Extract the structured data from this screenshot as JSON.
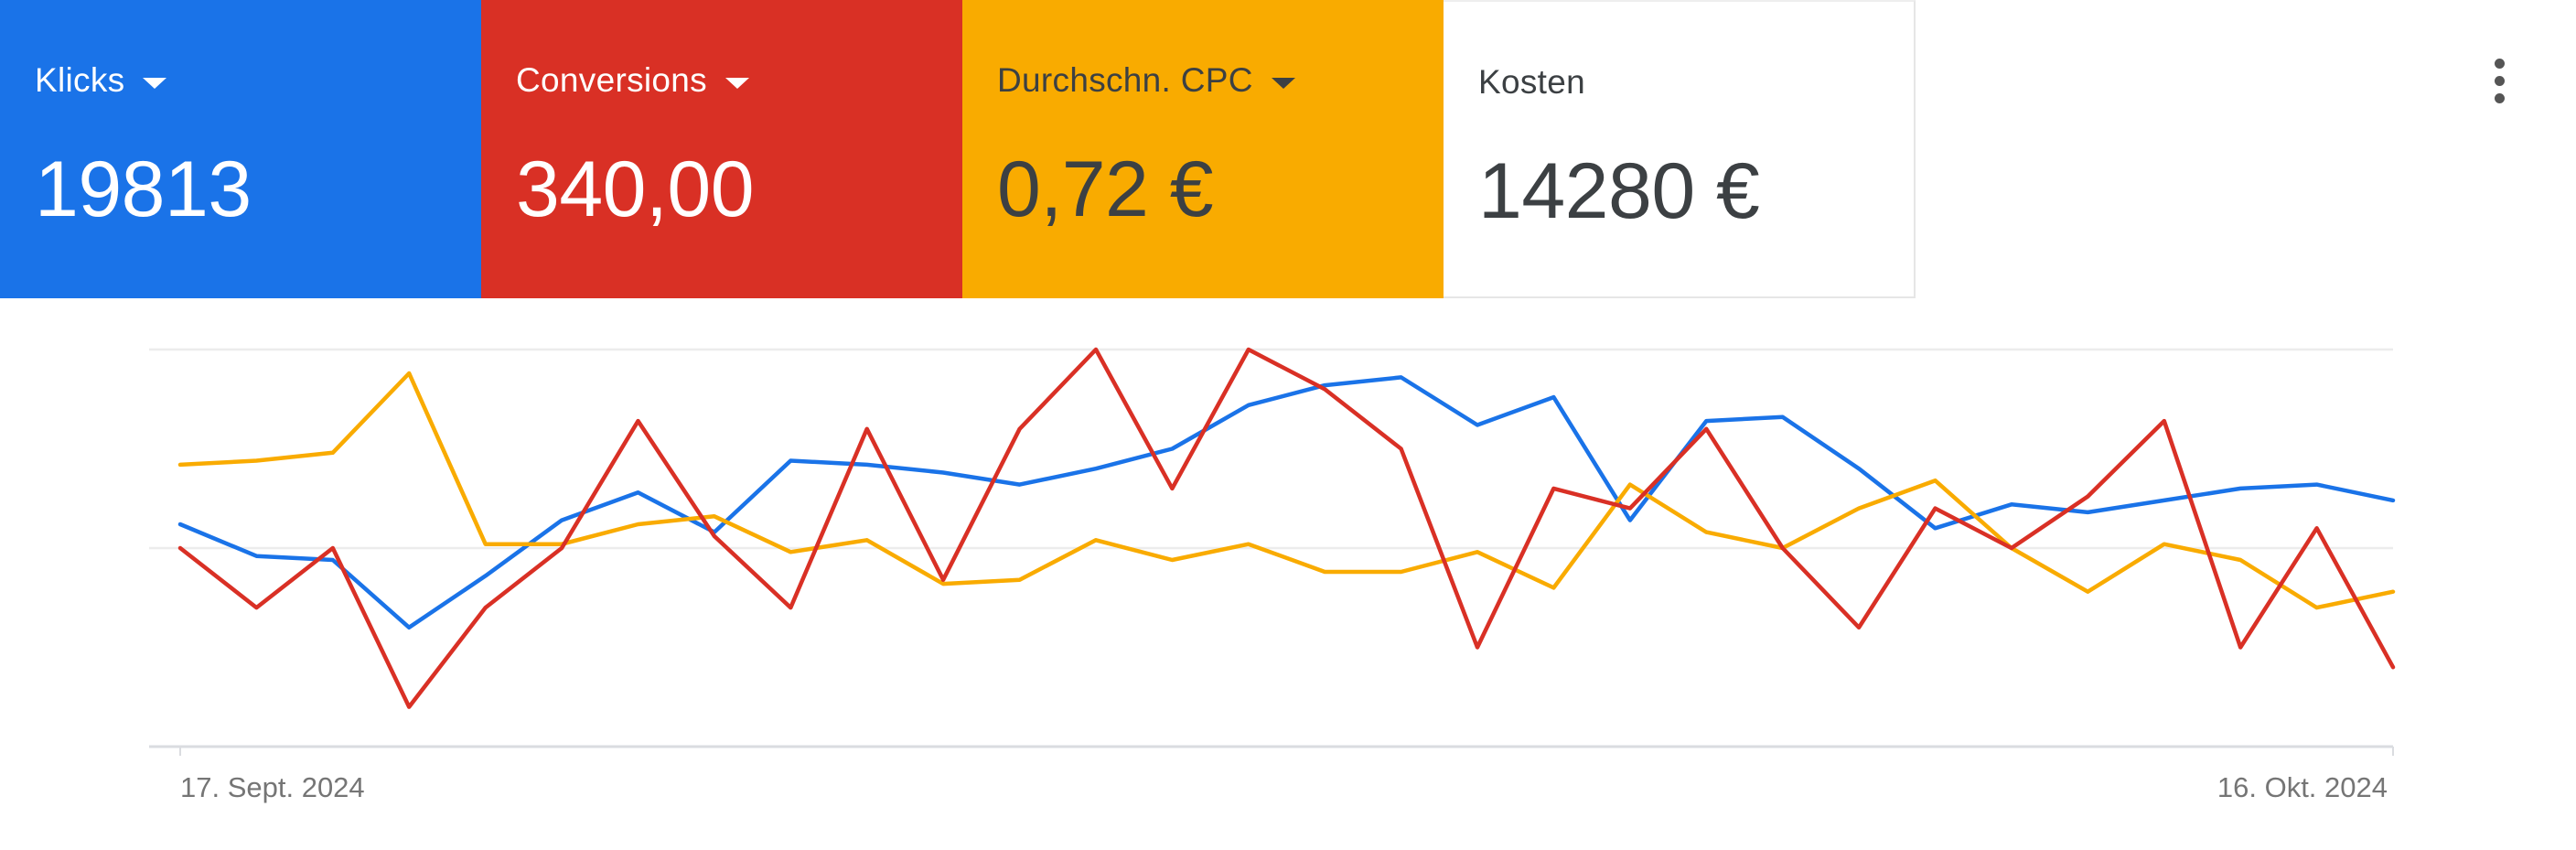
{
  "cards": [
    {
      "label": "Klicks",
      "value": "19813",
      "bg": "#1a73e8",
      "fg": "#ffffff",
      "dropdown": true
    },
    {
      "label": "Conversions",
      "value": "340,00",
      "bg": "#d93025",
      "fg": "#ffffff",
      "dropdown": true
    },
    {
      "label": "Durchschn. CPC",
      "value": "0,72 €",
      "bg": "#f9ab00",
      "fg": "#3c4043",
      "dropdown": true
    },
    {
      "label": "Kosten",
      "value": "14280 €",
      "bg": "#ffffff",
      "fg": "#3c4043",
      "dropdown": false
    }
  ],
  "menu": {
    "icon": "more-vert-icon"
  },
  "chart_data": {
    "type": "line",
    "x_start_label": "17. Sept. 2024",
    "x_end_label": "16. Okt. 2024",
    "ylim": [
      0,
      100
    ],
    "grid": true,
    "legend": "none",
    "series": [
      {
        "key": "klicks",
        "color": "#1a73e8",
        "values": [
          56,
          48,
          47,
          30,
          43,
          57,
          64,
          54,
          72,
          71,
          69,
          66,
          70,
          75,
          86,
          91,
          93,
          81,
          88,
          57,
          82,
          83,
          70,
          55,
          61,
          59,
          62,
          65,
          66,
          62
        ]
      },
      {
        "key": "conversions",
        "color": "#d93025",
        "values": [
          50,
          35,
          50,
          10,
          35,
          50,
          82,
          53,
          35,
          80,
          42,
          80,
          100,
          65,
          100,
          90,
          75,
          25,
          65,
          60,
          80,
          50,
          30,
          60,
          50,
          63,
          82,
          25,
          55,
          20
        ]
      },
      {
        "key": "durchschn_cpc",
        "color": "#f9ab00",
        "values": [
          71,
          72,
          74,
          94,
          51,
          51,
          56,
          58,
          49,
          52,
          41,
          42,
          52,
          47,
          51,
          44,
          44,
          49,
          40,
          66,
          54,
          50,
          60,
          67,
          50,
          39,
          51,
          47,
          35,
          39
        ]
      }
    ]
  }
}
